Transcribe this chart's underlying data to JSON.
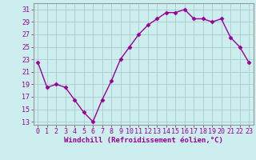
{
  "x": [
    0,
    1,
    2,
    3,
    4,
    5,
    6,
    7,
    8,
    9,
    10,
    11,
    12,
    13,
    14,
    15,
    16,
    17,
    18,
    19,
    20,
    21,
    22,
    23
  ],
  "y": [
    22.5,
    18.5,
    19.0,
    18.5,
    16.5,
    14.5,
    13.0,
    16.5,
    19.5,
    23.0,
    25.0,
    27.0,
    28.5,
    29.5,
    30.5,
    30.5,
    31.0,
    29.5,
    29.5,
    29.0,
    29.5,
    26.5,
    25.0,
    22.5
  ],
  "line_color": "#990099",
  "marker": "D",
  "marker_size": 2.5,
  "bg_color": "#cceeee",
  "grid_color": "#aacccc",
  "xlabel": "Windchill (Refroidissement éolien,°C)",
  "xlabel_fontsize": 6.5,
  "ylabel_ticks": [
    13,
    15,
    17,
    19,
    21,
    23,
    25,
    27,
    29,
    31
  ],
  "xlim": [
    -0.5,
    23.5
  ],
  "ylim": [
    12.5,
    32.0
  ],
  "xtick_labels": [
    "0",
    "1",
    "2",
    "3",
    "4",
    "5",
    "6",
    "7",
    "8",
    "9",
    "10",
    "11",
    "12",
    "13",
    "14",
    "15",
    "16",
    "17",
    "18",
    "19",
    "20",
    "21",
    "22",
    "23"
  ],
  "tick_fontsize": 6.0,
  "line_width": 1.0
}
